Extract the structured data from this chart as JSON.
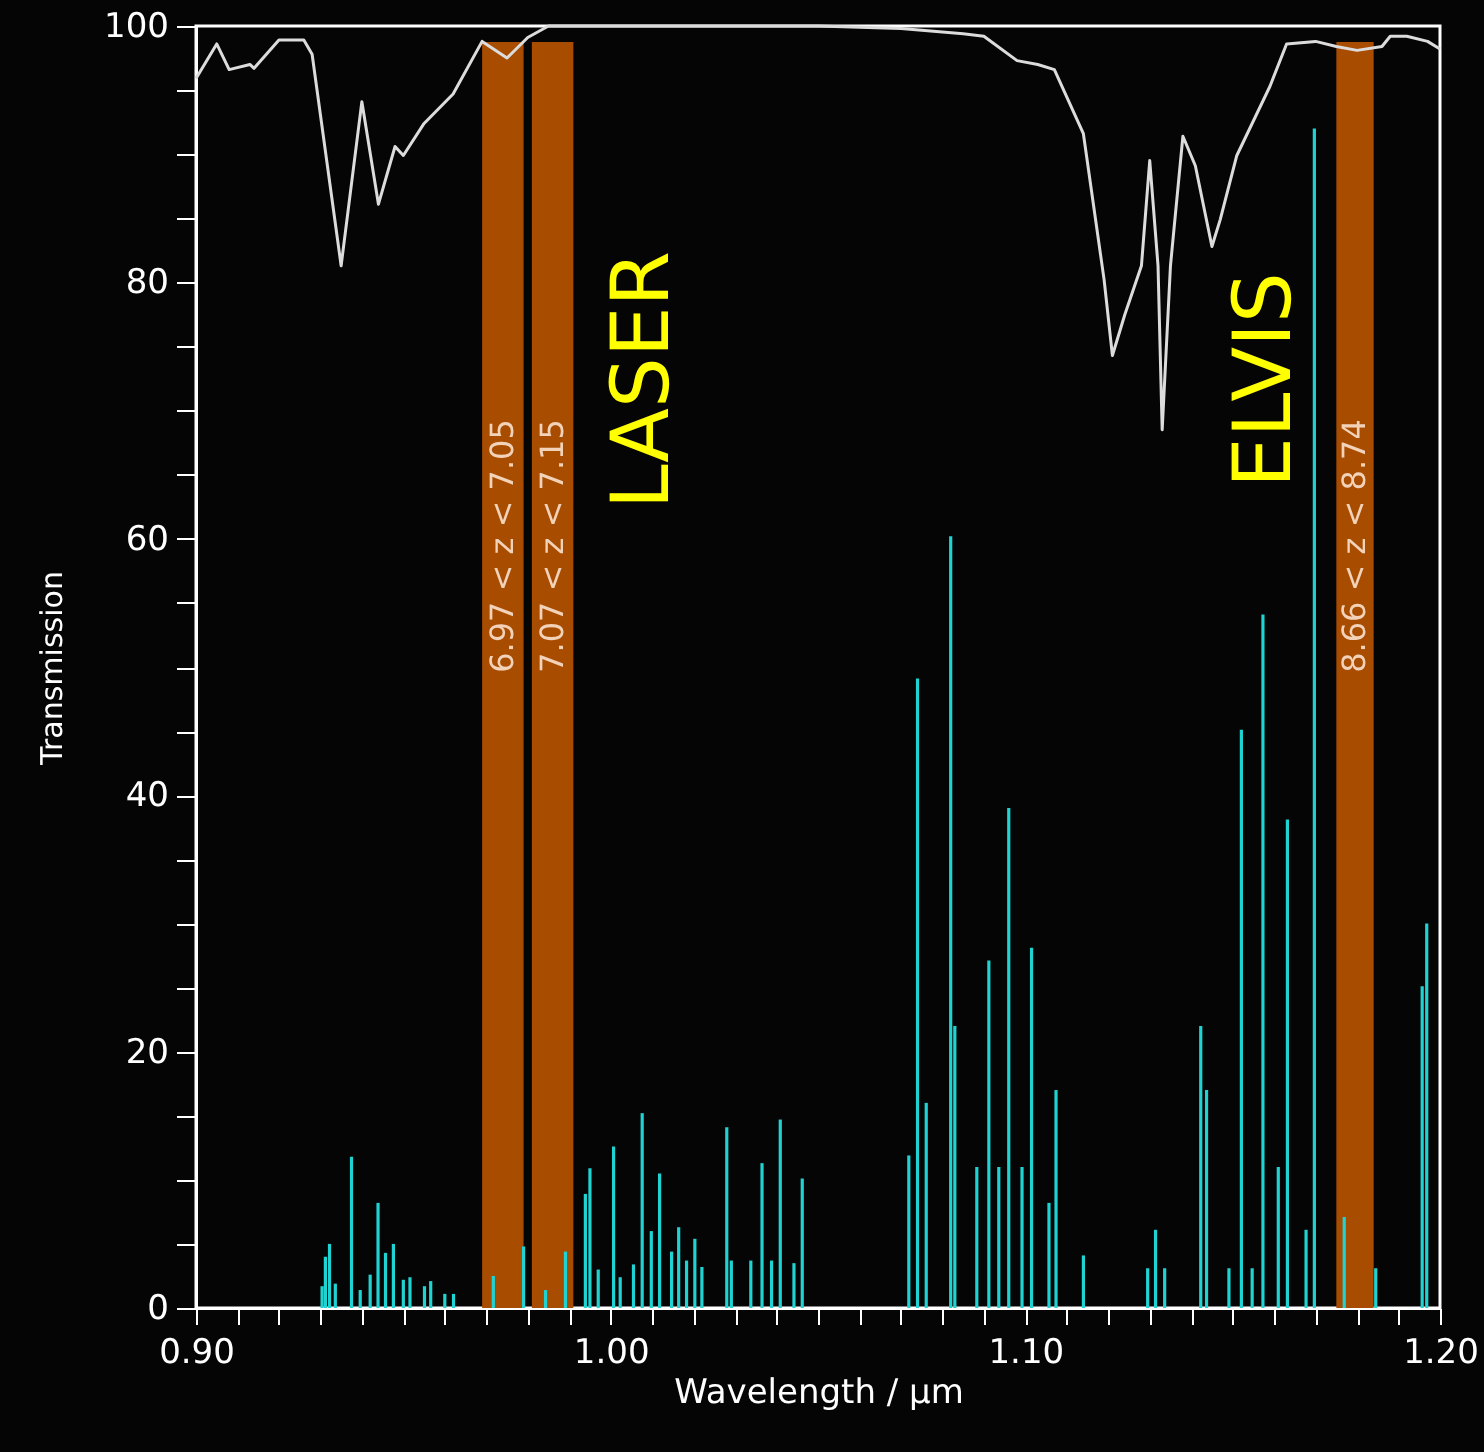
{
  "chart_data": {
    "type": "line",
    "xlabel": "Wavelength / μm",
    "ylabel": "Transmission",
    "xlim": [
      0.9,
      1.2
    ],
    "ylim": [
      0,
      100
    ],
    "xticks": [
      {
        "value": 0.9,
        "label": "0.90"
      },
      {
        "value": 0.91,
        "label": null
      },
      {
        "value": 0.92,
        "label": null
      },
      {
        "value": 0.93,
        "label": null
      },
      {
        "value": 0.94,
        "label": null
      },
      {
        "value": 0.95,
        "label": null
      },
      {
        "value": 0.96,
        "label": null
      },
      {
        "value": 0.97,
        "label": null
      },
      {
        "value": 0.98,
        "label": null
      },
      {
        "value": 0.99,
        "label": null
      },
      {
        "value": 1.0,
        "label": "1.00"
      },
      {
        "value": 1.01,
        "label": null
      },
      {
        "value": 1.02,
        "label": null
      },
      {
        "value": 1.03,
        "label": null
      },
      {
        "value": 1.04,
        "label": null
      },
      {
        "value": 1.05,
        "label": null
      },
      {
        "value": 1.06,
        "label": null
      },
      {
        "value": 1.07,
        "label": null
      },
      {
        "value": 1.08,
        "label": null
      },
      {
        "value": 1.09,
        "label": null
      },
      {
        "value": 1.1,
        "label": "1.10"
      },
      {
        "value": 1.11,
        "label": null
      },
      {
        "value": 1.12,
        "label": null
      },
      {
        "value": 1.13,
        "label": null
      },
      {
        "value": 1.14,
        "label": null
      },
      {
        "value": 1.15,
        "label": null
      },
      {
        "value": 1.16,
        "label": null
      },
      {
        "value": 1.17,
        "label": null
      },
      {
        "value": 1.18,
        "label": null
      },
      {
        "value": 1.19,
        "label": null
      },
      {
        "value": 1.2,
        "label": "1.20"
      }
    ],
    "yticks": [
      0,
      {
        "value": 5,
        "label": null
      },
      {
        "value": 10,
        "label": null
      },
      {
        "value": 15,
        "label": null
      },
      20,
      {
        "value": 25,
        "label": null
      },
      {
        "value": 30,
        "label": null
      },
      {
        "value": 35,
        "label": null
      },
      40,
      {
        "value": 45,
        "label": null
      },
      {
        "value": 50,
        "label": null
      },
      {
        "value": 55,
        "label": null
      },
      60,
      {
        "value": 65,
        "label": null
      },
      {
        "value": 70,
        "label": null
      },
      {
        "value": 75,
        "label": null
      },
      80,
      {
        "value": 85,
        "label": null
      },
      {
        "value": 90,
        "label": null
      },
      {
        "value": 95,
        "label": null
      },
      100
    ],
    "grid": false,
    "bands": [
      {
        "axis": "x",
        "from": 0.969,
        "to": 0.979,
        "label": "6.97 < z < 7.05",
        "color": "#a84c00"
      },
      {
        "axis": "x",
        "from": 0.981,
        "to": 0.991,
        "label": "7.07 < z < 7.15",
        "color": "#a84c00"
      },
      {
        "axis": "x",
        "from": 1.175,
        "to": 1.184,
        "label": "8.66 < z < 8.74",
        "color": "#a84c00"
      }
    ],
    "annotations": [
      "LASER",
      "ELVIS"
    ],
    "series": [
      {
        "type": "bar",
        "color": "#1fd3d3",
        "x": [
          0.9304,
          0.9312,
          0.9322,
          0.9336,
          0.9375,
          0.9396,
          0.942,
          0.9439,
          0.9457,
          0.9476,
          0.95,
          0.9516,
          0.9551,
          0.9566,
          0.96,
          0.9621,
          0.9717,
          0.979,
          0.9843,
          0.9891,
          0.9939,
          0.995,
          0.997,
          1.0007,
          1.0023,
          1.0055,
          1.0076,
          1.0098,
          1.0118,
          1.0147,
          1.0164,
          1.0183,
          1.0203,
          1.022,
          1.028,
          1.0291,
          1.0338,
          1.0365,
          1.0388,
          1.0409,
          1.0442,
          1.0462,
          1.0719,
          1.074,
          1.0761,
          1.082,
          1.083,
          1.0883,
          1.0912,
          1.0936,
          1.096,
          1.0992,
          1.1015,
          1.1057,
          1.1074,
          1.114,
          1.1295,
          1.1314,
          1.1336,
          1.1423,
          1.1437,
          1.1491,
          1.1521,
          1.1547,
          1.1573,
          1.161,
          1.1632,
          1.1677,
          1.1697,
          1.1769,
          1.1845,
          1.1957,
          1.1968
        ],
        "values": [
          1.7,
          4.0,
          5.0,
          1.9,
          11.8,
          1.4,
          2.6,
          8.2,
          4.3,
          5.0,
          2.2,
          2.4,
          1.7,
          2.1,
          1.1,
          1.1,
          2.5,
          4.8,
          1.4,
          4.4,
          8.9,
          10.9,
          3.0,
          12.6,
          2.4,
          3.4,
          15.2,
          6.0,
          10.5,
          4.4,
          6.3,
          3.7,
          5.4,
          3.2,
          14.1,
          3.7,
          3.7,
          11.3,
          3.7,
          14.7,
          3.5,
          10.1,
          11.9,
          49.1,
          16.0,
          60.2,
          22.0,
          11.0,
          27.1,
          11.0,
          39.0,
          11.0,
          28.1,
          8.2,
          17.0,
          4.1,
          3.1,
          6.1,
          3.1,
          22.0,
          17.0,
          3.1,
          45.1,
          3.1,
          54.1,
          11.0,
          38.1,
          6.1,
          92,
          7.1,
          3.1,
          25.1,
          30.0
        ]
      },
      {
        "color": "#dcdcdc",
        "x": [
          0.9,
          0.905,
          0.908,
          0.913,
          0.914,
          0.92,
          0.926,
          0.928,
          0.935,
          0.94,
          0.944,
          0.948,
          0.95,
          0.955,
          0.962,
          0.969,
          0.975,
          0.98,
          0.985,
          1.0,
          1.05,
          1.07,
          1.085,
          1.09,
          1.098,
          1.103,
          1.107,
          1.114,
          1.119,
          1.121,
          1.124,
          1.128,
          1.13,
          1.132,
          1.133,
          1.135,
          1.138,
          1.141,
          1.145,
          1.147,
          1.151,
          1.159,
          1.163,
          1.17,
          1.175,
          1.18,
          1.186,
          1.188,
          1.192,
          1.197,
          1.2
        ],
        "values": [
          95.9,
          98.6,
          96.6,
          97.0,
          96.7,
          98.9,
          98.9,
          97.8,
          81.3,
          94.1,
          86.1,
          90.6,
          89.9,
          92.4,
          94.7,
          98.8,
          97.5,
          99.1,
          100,
          100,
          100,
          99.8,
          99.4,
          99.2,
          97.3,
          97.0,
          96.6,
          91.6,
          80.2,
          74.3,
          77.5,
          81.3,
          89.5,
          81.3,
          68.5,
          81.3,
          91.4,
          89.1,
          82.8,
          84.9,
          89.9,
          95.3,
          98.6,
          98.8,
          98.4,
          98.1,
          98.4,
          99.2,
          99.2,
          98.8,
          98.2
        ]
      }
    ]
  }
}
